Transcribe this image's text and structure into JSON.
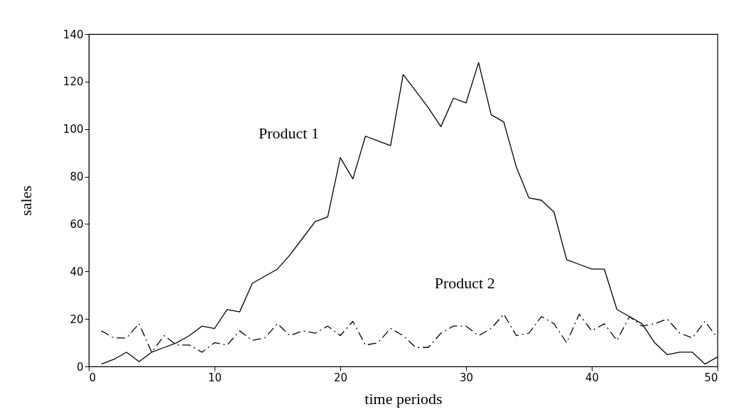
{
  "chart_data": {
    "type": "line",
    "xlabel": "time periods",
    "ylabel": "sales",
    "x": [
      1,
      2,
      3,
      4,
      5,
      6,
      7,
      8,
      9,
      10,
      11,
      12,
      13,
      14,
      15,
      16,
      17,
      18,
      19,
      20,
      21,
      22,
      23,
      24,
      25,
      26,
      27,
      28,
      29,
      30,
      31,
      32,
      33,
      34,
      35,
      36,
      37,
      38,
      39,
      40,
      41,
      42,
      43,
      44,
      45,
      46,
      47,
      48,
      49,
      50
    ],
    "series": [
      {
        "name": "Product 1",
        "color": "#000000",
        "line_style": "solid",
        "values": [
          1,
          3,
          6,
          2,
          6,
          8,
          10,
          13,
          17,
          16,
          24,
          23,
          35,
          38,
          41,
          47,
          54,
          61,
          63,
          88,
          79,
          97,
          95,
          93,
          123,
          116,
          109,
          101,
          113,
          111,
          128,
          106,
          103,
          84,
          71,
          70,
          65,
          45,
          43,
          41,
          41,
          24,
          21,
          18,
          10,
          5,
          6,
          6,
          1,
          4
        ]
      },
      {
        "name": "Product 2",
        "color": "#000000",
        "line_style": "dashed",
        "values": [
          15,
          12,
          12,
          18,
          6,
          13,
          9,
          9,
          6,
          10,
          9,
          15,
          11,
          12,
          18,
          13,
          15,
          14,
          17,
          13,
          19,
          9,
          10,
          16,
          13,
          8,
          8,
          14,
          17,
          17,
          13,
          16,
          22,
          13,
          14,
          21,
          18,
          10,
          22,
          15,
          18,
          11,
          21,
          17,
          18,
          20,
          14,
          12,
          19,
          12
        ]
      }
    ],
    "xlim": [
      0,
      50
    ],
    "xticks": [
      0,
      10,
      20,
      30,
      40,
      50
    ],
    "ylim": [
      0,
      140
    ],
    "yticks": [
      0,
      20,
      40,
      60,
      80,
      100,
      120,
      140
    ],
    "grid": false,
    "marker": "none"
  }
}
